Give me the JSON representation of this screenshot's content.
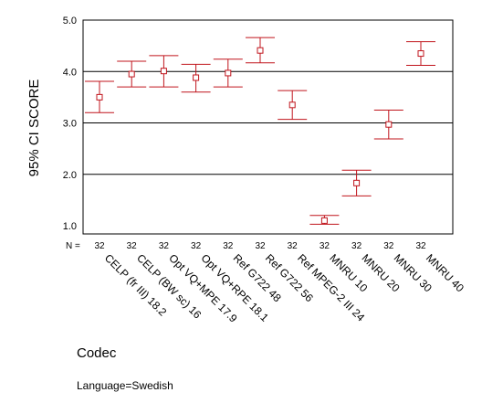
{
  "chart_data": {
    "type": "errorbar",
    "ylabel": "95% CI SCORE",
    "xlabel": "Codec",
    "footnote": "Language=Swedish",
    "n_prefix": "N =",
    "ylim": [
      1.0,
      5.0
    ],
    "yticks": [
      "1.0",
      "2.0",
      "3.0",
      "4.0",
      "5.0"
    ],
    "grid_lines": [
      2.0,
      3.0,
      4.0
    ],
    "grid": "horizontal at 2.0, 3.0, 4.0",
    "color": "#c0141c",
    "categories": [
      "CELP (fr III) 18.2",
      "CELP (BW sc) 16",
      "Opt VQ+MPE 17.9",
      "Opt VQ+RPE 18.1",
      "Ref G722 48",
      "Ref G722 56",
      "Ref MPEG-2 III 24",
      "MNRU 10",
      "MNRU 20",
      "MNRU 30",
      "MNRU 40"
    ],
    "n": [
      "32",
      "32",
      "32",
      "32",
      "32",
      "32",
      "32",
      "32",
      "32",
      "32",
      "32"
    ],
    "means": [
      3.5,
      3.95,
      4.01,
      3.88,
      3.97,
      4.41,
      3.35,
      1.1,
      1.83,
      2.97,
      4.35
    ],
    "lower": [
      3.2,
      3.7,
      3.7,
      3.6,
      3.7,
      4.17,
      3.07,
      1.03,
      1.58,
      2.69,
      4.12
    ],
    "upper": [
      3.81,
      4.2,
      4.31,
      4.14,
      4.24,
      4.66,
      3.63,
      1.2,
      2.08,
      3.25,
      4.58
    ]
  }
}
